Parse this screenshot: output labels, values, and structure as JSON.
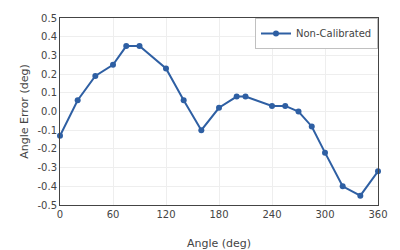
{
  "chart_data": {
    "type": "line",
    "x": [
      0,
      20,
      40,
      60,
      75,
      90,
      120,
      140,
      160,
      180,
      200,
      210,
      240,
      255,
      270,
      285,
      300,
      320,
      340,
      360
    ],
    "series": [
      {
        "name": "Non-Calibrated",
        "color": "#2E5FA3",
        "marker": "circle",
        "values": [
          -0.13,
          0.06,
          0.19,
          0.25,
          0.35,
          0.35,
          0.23,
          0.06,
          -0.1,
          0.02,
          0.08,
          0.08,
          0.03,
          0.03,
          0.0,
          -0.08,
          -0.22,
          -0.4,
          -0.45,
          -0.32
        ]
      }
    ],
    "xlabel": "Angle (deg)",
    "ylabel": "Angle Error (deg)",
    "xlim": [
      0,
      360
    ],
    "ylim": [
      -0.5,
      0.5
    ],
    "xticks": [
      0,
      60,
      120,
      180,
      240,
      300,
      360
    ],
    "yticks": [
      -0.5,
      -0.4,
      -0.3,
      -0.2,
      -0.1,
      {
        "value": 0,
        "label": "0.0"
      },
      0.1,
      0.2,
      0.3,
      0.4,
      0.5
    ],
    "grid": true,
    "legend": "upper right"
  }
}
